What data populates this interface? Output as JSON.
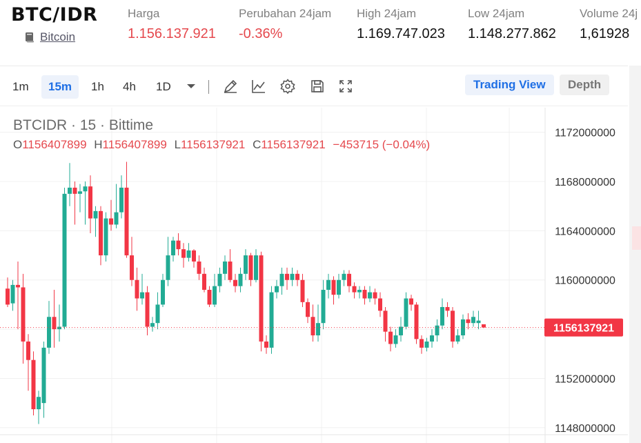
{
  "header": {
    "pair": "BTC/IDR",
    "coin_label": "Bitcoin",
    "stats": [
      {
        "label": "Harga",
        "value": "1.156.137.921",
        "color": "red"
      },
      {
        "label": "Perubahan 24jam",
        "value": "-0.36%",
        "color": "red"
      },
      {
        "label": "High 24jam",
        "value": "1.169.747.023",
        "color": "black"
      },
      {
        "label": "Low 24jam",
        "value": "1.148.277.862",
        "color": "black"
      },
      {
        "label": "Volume 24j",
        "value": "1,61928",
        "color": "black"
      }
    ]
  },
  "toolbar": {
    "timeframes": [
      "1m",
      "15m",
      "1h",
      "4h",
      "1D"
    ],
    "active_timeframe": "15m",
    "icons": [
      "chevron-down-icon",
      "pen-tool-icon",
      "indicator-icon",
      "gear-icon",
      "save-icon",
      "fullscreen-icon"
    ],
    "trading_view_label": "Trading View",
    "depth_label": "Depth"
  },
  "chart": {
    "title": "BTCIDR · 15 · Bittime",
    "ohlc": {
      "o_label": "O",
      "o": "1156407899",
      "h_label": "H",
      "h": "1156407899",
      "l_label": "L",
      "l": "1156137921",
      "c_label": "C",
      "c": "1156137921",
      "change": "−453715 (−0.04%)"
    },
    "last_price_label": "1156137921"
  },
  "chart_data": {
    "type": "candlestick",
    "y_ticks": [
      "1172000000",
      "1168000000",
      "1164000000",
      "1160000000",
      "1156000000",
      "1152000000",
      "1148000000"
    ],
    "ylim": [
      1146700000,
      1174000000
    ],
    "last_price": 1156137921,
    "colors": {
      "up": "#22ab94",
      "down": "#f23645",
      "last_price_line": "#f23645"
    },
    "candles": [
      [
        1159.3,
        1158.0,
        1160.2,
        1157.8
      ],
      [
        1158.1,
        1159.6,
        1160.0,
        1157.5
      ],
      [
        1159.6,
        1159.4,
        1161.5,
        1156.0
      ],
      [
        1159.4,
        1155.0,
        1160.5,
        1153.2
      ],
      [
        1155.0,
        1153.5,
        1155.6,
        1151.0
      ],
      [
        1153.5,
        1149.5,
        1154.2,
        1149.0
      ],
      [
        1149.5,
        1150.5,
        1151.0,
        1148.3
      ],
      [
        1150.0,
        1154.5,
        1155.0,
        1148.8
      ],
      [
        1154.5,
        1157.0,
        1158.3,
        1154.0
      ],
      [
        1157.0,
        1156.0,
        1159.2,
        1154.5
      ],
      [
        1156.0,
        1156.2,
        1158.0,
        1155.0
      ],
      [
        1156.2,
        1167.0,
        1167.5,
        1156.0
      ],
      [
        1167.0,
        1167.5,
        1169.5,
        1166.0
      ],
      [
        1167.5,
        1167.0,
        1168.0,
        1164.5
      ],
      [
        1167.0,
        1167.2,
        1167.8,
        1165.5
      ],
      [
        1167.2,
        1167.6,
        1168.0,
        1164.5
      ],
      [
        1167.6,
        1165.0,
        1168.5,
        1163.8
      ],
      [
        1165.0,
        1165.6,
        1166.0,
        1163.5
      ],
      [
        1165.6,
        1162.0,
        1166.0,
        1161.2
      ],
      [
        1162.0,
        1165.0,
        1165.5,
        1161.5
      ],
      [
        1165.0,
        1164.5,
        1166.5,
        1164.0
      ],
      [
        1164.5,
        1165.5,
        1167.8,
        1164.2
      ],
      [
        1165.5,
        1167.5,
        1168.5,
        1165.0
      ],
      [
        1167.5,
        1162.0,
        1169.6,
        1161.8
      ],
      [
        1162.0,
        1160.0,
        1163.5,
        1159.5
      ],
      [
        1160.0,
        1158.5,
        1161.0,
        1157.5
      ],
      [
        1158.5,
        1159.0,
        1160.5,
        1158.0
      ],
      [
        1159.0,
        1156.2,
        1159.5,
        1155.5
      ],
      [
        1156.2,
        1156.5,
        1157.0,
        1155.8
      ],
      [
        1156.5,
        1158.0,
        1159.0,
        1156.0
      ],
      [
        1158.0,
        1160.0,
        1160.5,
        1157.8
      ],
      [
        1160.0,
        1162.0,
        1163.5,
        1159.5
      ],
      [
        1162.0,
        1163.2,
        1163.5,
        1161.5
      ],
      [
        1163.2,
        1162.5,
        1163.8,
        1162.0
      ],
      [
        1162.5,
        1161.8,
        1163.0,
        1161.0
      ],
      [
        1161.8,
        1162.4,
        1163.0,
        1161.5
      ],
      [
        1162.4,
        1161.5,
        1162.5,
        1161.0
      ],
      [
        1161.5,
        1160.5,
        1162.0,
        1160.0
      ],
      [
        1160.5,
        1159.2,
        1161.0,
        1159.0
      ],
      [
        1159.2,
        1158.0,
        1159.5,
        1157.8
      ],
      [
        1158.0,
        1159.5,
        1160.5,
        1157.8
      ],
      [
        1159.5,
        1160.5,
        1161.0,
        1159.0
      ],
      [
        1160.5,
        1161.5,
        1162.0,
        1160.0
      ],
      [
        1161.5,
        1160.0,
        1162.5,
        1159.8
      ],
      [
        1160.0,
        1159.5,
        1160.5,
        1159.0
      ],
      [
        1159.5,
        1160.5,
        1161.0,
        1159.0
      ],
      [
        1160.5,
        1162.0,
        1162.5,
        1160.0
      ],
      [
        1162.0,
        1160.0,
        1162.2,
        1159.5
      ],
      [
        1160.0,
        1162.0,
        1162.5,
        1159.8
      ],
      [
        1162.0,
        1155.0,
        1162.3,
        1154.2
      ],
      [
        1155.0,
        1154.5,
        1155.5,
        1154.0
      ],
      [
        1154.5,
        1159.0,
        1159.5,
        1154.0
      ],
      [
        1159.0,
        1159.5,
        1160.0,
        1158.5
      ],
      [
        1159.5,
        1160.5,
        1161.0,
        1158.8
      ],
      [
        1160.5,
        1160.0,
        1161.0,
        1159.2
      ],
      [
        1160.0,
        1160.5,
        1161.0,
        1159.5
      ],
      [
        1160.5,
        1160.0,
        1160.8,
        1159.5
      ],
      [
        1160.0,
        1158.2,
        1160.5,
        1157.8
      ],
      [
        1158.2,
        1157.0,
        1158.5,
        1156.5
      ],
      [
        1157.0,
        1155.5,
        1158.0,
        1155.0
      ],
      [
        1155.5,
        1156.5,
        1158.0,
        1155.0
      ],
      [
        1156.5,
        1159.2,
        1160.0,
        1156.0
      ],
      [
        1159.2,
        1160.0,
        1160.5,
        1158.5
      ],
      [
        1160.0,
        1158.8,
        1160.3,
        1158.0
      ],
      [
        1158.8,
        1160.0,
        1160.5,
        1158.5
      ],
      [
        1160.0,
        1160.5,
        1160.8,
        1159.5
      ],
      [
        1160.5,
        1159.5,
        1160.8,
        1159.0
      ],
      [
        1159.5,
        1159.0,
        1159.8,
        1158.5
      ],
      [
        1159.0,
        1159.2,
        1159.5,
        1158.5
      ],
      [
        1159.2,
        1158.5,
        1159.5,
        1158.0
      ],
      [
        1158.5,
        1159.0,
        1159.5,
        1158.2
      ],
      [
        1159.0,
        1158.5,
        1159.3,
        1158.0
      ],
      [
        1158.5,
        1157.5,
        1159.0,
        1157.0
      ],
      [
        1157.5,
        1155.8,
        1157.8,
        1155.0
      ],
      [
        1155.8,
        1154.8,
        1156.2,
        1154.2
      ],
      [
        1154.8,
        1155.5,
        1156.0,
        1154.5
      ],
      [
        1155.5,
        1156.2,
        1157.0,
        1155.0
      ],
      [
        1156.2,
        1158.5,
        1159.0,
        1156.0
      ],
      [
        1158.5,
        1158.0,
        1158.8,
        1157.5
      ],
      [
        1158.0,
        1155.2,
        1158.2,
        1154.8
      ],
      [
        1155.2,
        1154.5,
        1155.5,
        1154.0
      ],
      [
        1154.5,
        1155.0,
        1155.3,
        1154.2
      ],
      [
        1155.0,
        1155.5,
        1156.0,
        1154.5
      ],
      [
        1155.5,
        1156.3,
        1156.8,
        1155.0
      ],
      [
        1156.3,
        1157.8,
        1158.5,
        1156.0
      ],
      [
        1157.8,
        1157.5,
        1158.2,
        1157.0
      ],
      [
        1157.5,
        1155.0,
        1157.8,
        1154.5
      ],
      [
        1155.0,
        1155.5,
        1156.0,
        1154.8
      ],
      [
        1155.5,
        1156.8,
        1157.2,
        1155.2
      ],
      [
        1156.8,
        1156.5,
        1157.3,
        1156.0
      ],
      [
        1156.5,
        1157.0,
        1157.5,
        1156.2
      ],
      [
        1156.5,
        1156.7,
        1157.5,
        1156.0
      ],
      [
        1156.4,
        1156.14,
        1156.4,
        1156.1
      ]
    ]
  }
}
